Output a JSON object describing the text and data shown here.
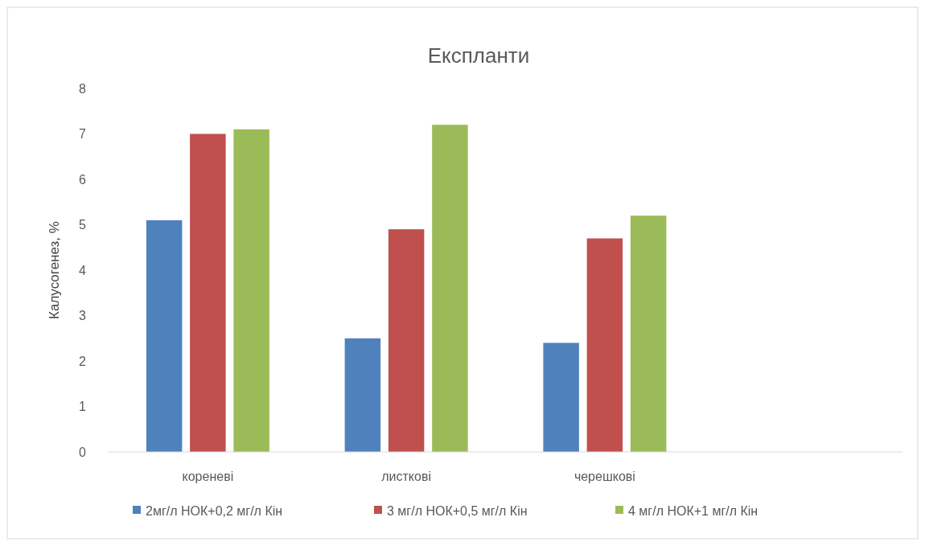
{
  "chart_data": {
    "type": "bar",
    "title": "Експланти",
    "ylabel": "Калусогенез, %",
    "categories": [
      "кореневі",
      "листкові",
      "черешкові",
      null
    ],
    "series": [
      {
        "name": "2мг/л НОК+0,2 мг/л Кін",
        "color": "#4f81bd",
        "values": [
          5.1,
          2.5,
          2.4,
          null
        ]
      },
      {
        "name": "3 мг/л НОК+0,5 мг/л Кін",
        "color": "#c0504d",
        "values": [
          7.0,
          4.9,
          4.7,
          null
        ]
      },
      {
        "name": "4 мг/л НОК+1 мг/л Кін",
        "color": "#9bbb59",
        "values": [
          7.1,
          7.2,
          5.2,
          null
        ]
      }
    ],
    "ylim": [
      0,
      8
    ],
    "yticks": [
      0,
      1,
      2,
      3,
      4,
      5,
      6,
      7,
      8
    ],
    "grid": false,
    "legend": "bottom"
  }
}
